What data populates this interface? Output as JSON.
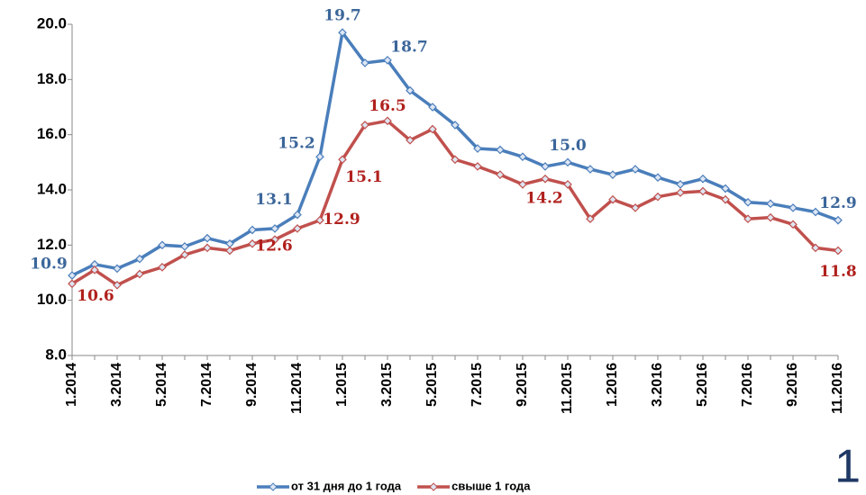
{
  "chart_data": {
    "type": "line",
    "categories": [
      "1.2014",
      null,
      "3.2014",
      null,
      "5.2014",
      null,
      "7.2014",
      null,
      "9.2014",
      null,
      "11.2014",
      null,
      "1.2015",
      null,
      "3.2015",
      null,
      "5.2015",
      null,
      "7.2015",
      null,
      "9.2015",
      null,
      "11.2015",
      null,
      "1.2016",
      null,
      "3.2016",
      null,
      "5.2016",
      null,
      "7.2016",
      null,
      "9.2016",
      null,
      "11.2016"
    ],
    "series": [
      {
        "name": "от 31 дня до 1 года",
        "color": "#4a7ebb",
        "values": [
          10.9,
          11.3,
          11.15,
          11.5,
          12.0,
          11.95,
          12.25,
          12.05,
          12.55,
          12.6,
          13.1,
          15.2,
          19.7,
          18.6,
          18.7,
          17.6,
          17.0,
          16.35,
          15.5,
          15.45,
          15.2,
          14.85,
          15.0,
          14.75,
          14.55,
          14.75,
          14.45,
          14.2,
          14.4,
          14.05,
          13.55,
          13.5,
          13.35,
          13.2,
          12.9
        ],
        "value_labels": [
          "10.9",
          null,
          null,
          null,
          null,
          null,
          null,
          null,
          null,
          null,
          "13.1",
          "15.2",
          "19.7",
          null,
          "18.7",
          null,
          null,
          null,
          null,
          null,
          null,
          null,
          "15.0",
          null,
          null,
          null,
          null,
          null,
          null,
          null,
          null,
          null,
          null,
          null,
          "12.9"
        ]
      },
      {
        "name": "свыше 1 года",
        "color": "#c0504d",
        "values": [
          10.6,
          11.1,
          10.55,
          10.95,
          11.2,
          11.65,
          11.9,
          11.8,
          12.05,
          12.2,
          12.6,
          12.9,
          15.1,
          16.35,
          16.5,
          15.8,
          16.2,
          15.1,
          14.85,
          14.55,
          14.2,
          14.4,
          14.2,
          12.95,
          13.65,
          13.35,
          13.75,
          13.9,
          13.95,
          13.65,
          12.95,
          13.0,
          12.75,
          11.9,
          11.8
        ],
        "value_labels": [
          "10.6",
          null,
          null,
          null,
          null,
          null,
          null,
          null,
          null,
          null,
          "12.6",
          "12.9",
          "15.1",
          null,
          "16.5",
          null,
          null,
          null,
          null,
          null,
          null,
          null,
          "14.2",
          null,
          null,
          null,
          null,
          null,
          null,
          null,
          null,
          null,
          null,
          null,
          "11.8"
        ]
      }
    ],
    "ylim": [
      8,
      20
    ],
    "yticks": [
      {
        "value": 8,
        "label": "8.0"
      },
      {
        "value": 10,
        "label": "10.0"
      },
      {
        "value": 12,
        "label": "12.0"
      },
      {
        "value": 14,
        "label": "14.0"
      },
      {
        "value": 16,
        "label": "16.0"
      },
      {
        "value": 18,
        "label": "18.0"
      },
      {
        "value": 20,
        "label": "20.0"
      }
    ],
    "grid": false,
    "legend": "bottom"
  },
  "slide_number": "1"
}
